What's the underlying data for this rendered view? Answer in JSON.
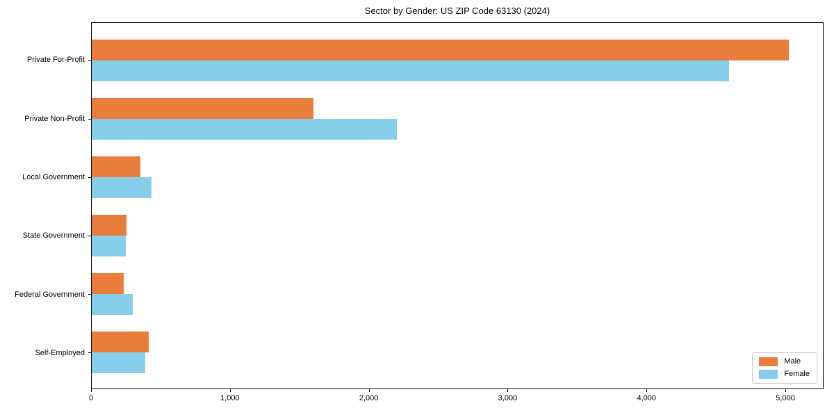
{
  "chart_data": {
    "type": "bar",
    "orientation": "horizontal",
    "title": "Sector by Gender: US ZIP Code 63130 (2024)",
    "categories": [
      "Private For-Profit",
      "Private Non-Profit",
      "Local Government",
      "State Government",
      "Federal Government",
      "Self-Employed"
    ],
    "series": [
      {
        "name": "Male",
        "color": "#E87D3C",
        "values": [
          5030,
          1600,
          350,
          250,
          230,
          410
        ]
      },
      {
        "name": "Female",
        "color": "#87CEEB",
        "values": [
          4600,
          2200,
          430,
          245,
          295,
          385
        ]
      }
    ],
    "xlabel": "",
    "ylabel": "",
    "xlim": [
      0,
      5275
    ],
    "grid": false,
    "legend_position": "lower right"
  },
  "axes": {
    "x_tick_values": [
      0,
      1000,
      2000,
      3000,
      4000,
      5000
    ],
    "x_tick_labels": [
      "0",
      "1,000",
      "2,000",
      "3,000",
      "4,000",
      "5,000"
    ]
  },
  "colors": {
    "male": "#E87D3C",
    "female": "#87CEEB",
    "spine": "#000000",
    "legend_border": "#c9c9c9",
    "background": "#ffffff"
  },
  "legend": {
    "items": [
      {
        "label": "Male",
        "color": "#E87D3C"
      },
      {
        "label": "Female",
        "color": "#87CEEB"
      }
    ]
  }
}
